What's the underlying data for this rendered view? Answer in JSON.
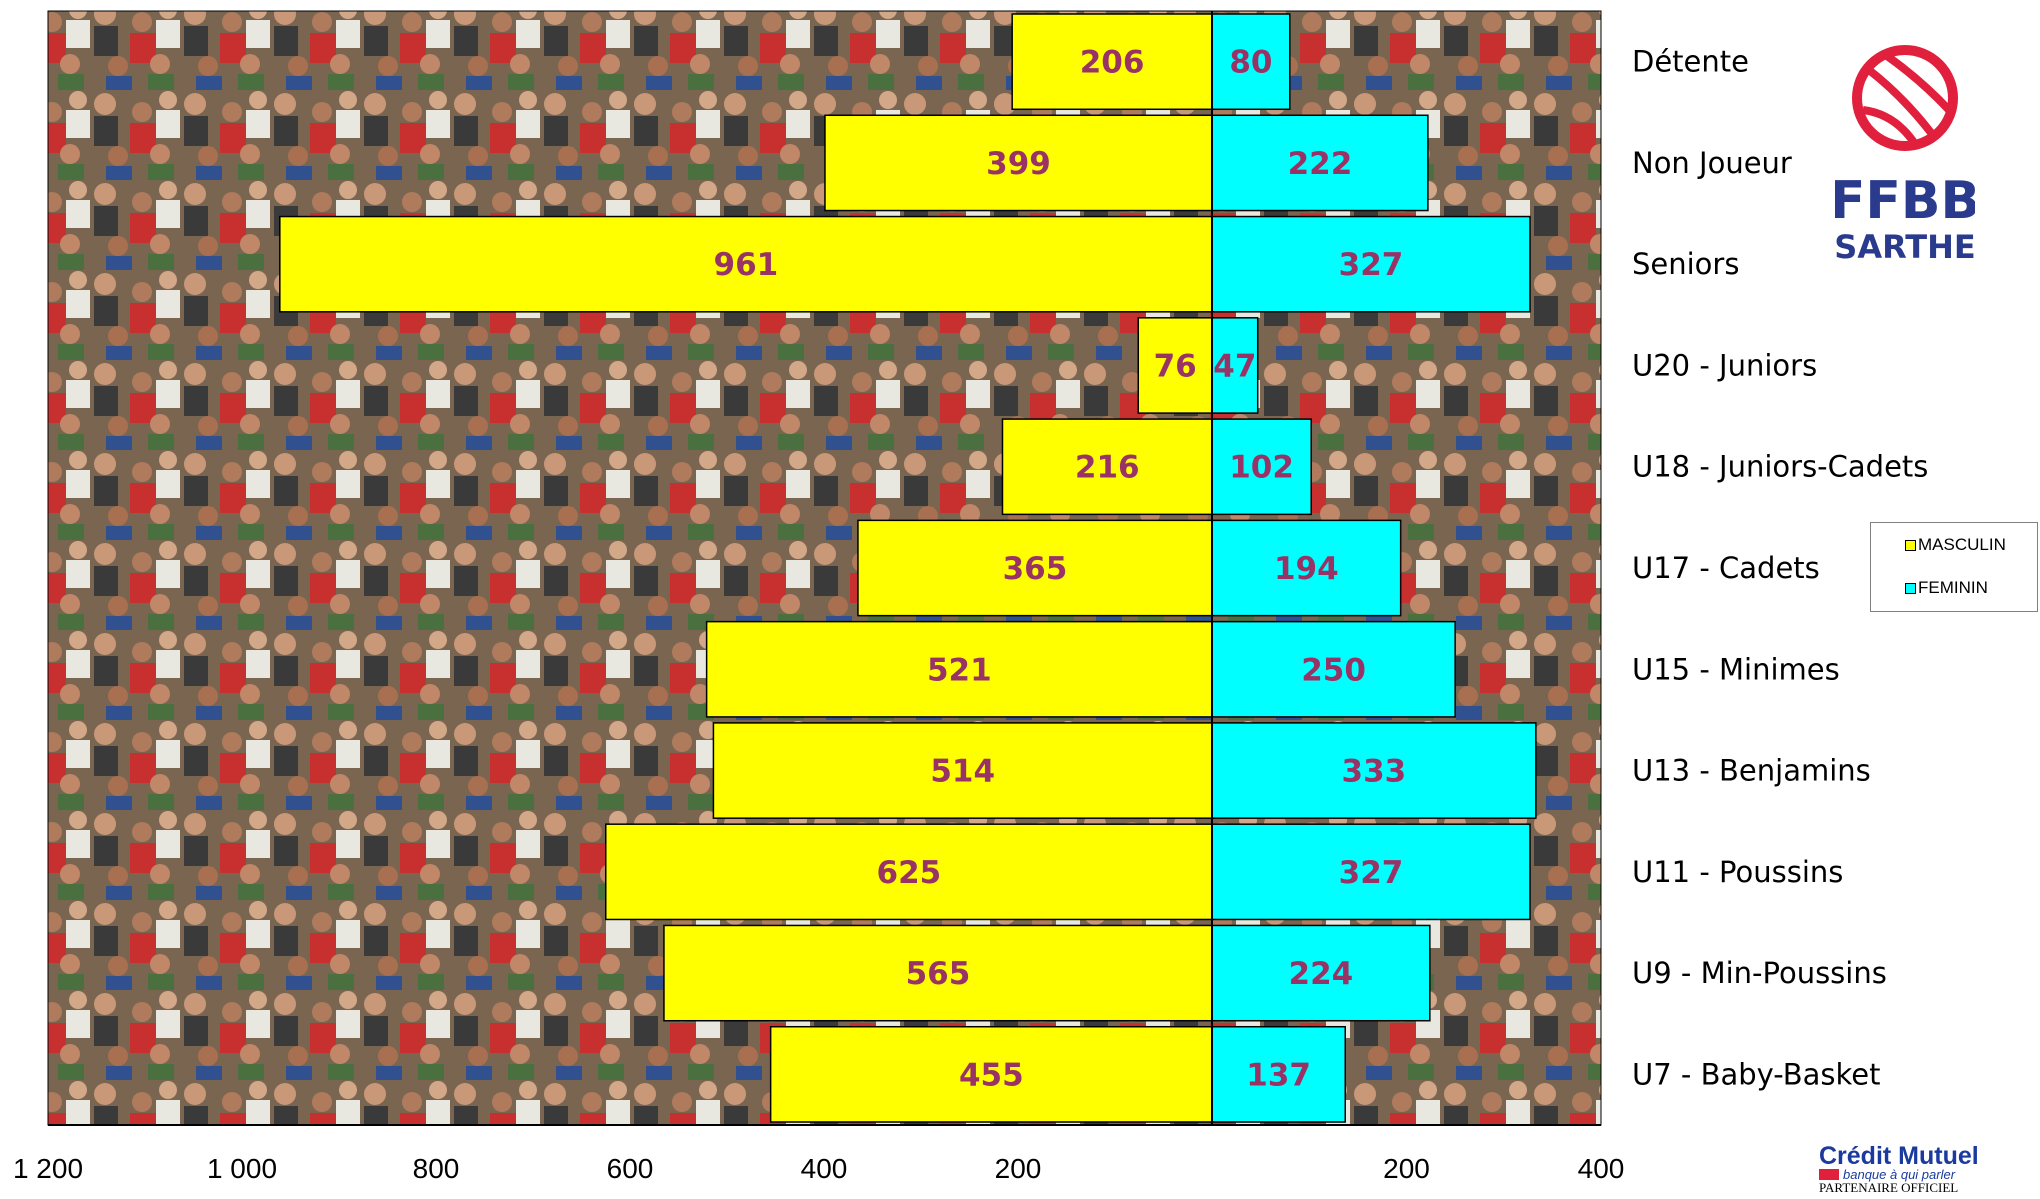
{
  "chart_data": {
    "type": "bar",
    "orientation": "horizontal-pyramid",
    "categories": [
      "Détente",
      "Non Joueur",
      "Seniors",
      "U20 - Juniors",
      "U18 - Juniors-Cadets",
      "U17 - Cadets",
      "U15 - Minimes",
      "U13 - Benjamins",
      "U11 - Poussins",
      "U9 - Min-Poussins",
      "U7 - Baby-Basket"
    ],
    "series": [
      {
        "name": "MASCULIN",
        "color": "#ffff00",
        "side": "left",
        "values": [
          206,
          399,
          961,
          76,
          216,
          365,
          521,
          514,
          625,
          565,
          455
        ]
      },
      {
        "name": "FEMININ",
        "color": "#00ffff",
        "side": "right",
        "values": [
          80,
          222,
          327,
          47,
          102,
          194,
          250,
          333,
          327,
          224,
          137
        ]
      }
    ],
    "x_ticks_left": [
      "1 200",
      "1 000",
      "800",
      "600",
      "400",
      "200"
    ],
    "x_ticks_right": [
      "200",
      "400"
    ],
    "xlim_left": [
      0,
      1200
    ],
    "xlim_right": [
      0,
      400
    ],
    "legend_position": "right",
    "grid": false,
    "label_color": "#993366",
    "background": "crowd-photo"
  },
  "logo": {
    "line1": "FFBB",
    "line2": "SARTHE",
    "color": "#2a3a8c",
    "ring_color": "#e0203c"
  },
  "sponsor": {
    "name": "Crédit Mutuel",
    "tagline": "banque à qui parler",
    "sub": "PARTENAIRE OFFICIEL"
  }
}
